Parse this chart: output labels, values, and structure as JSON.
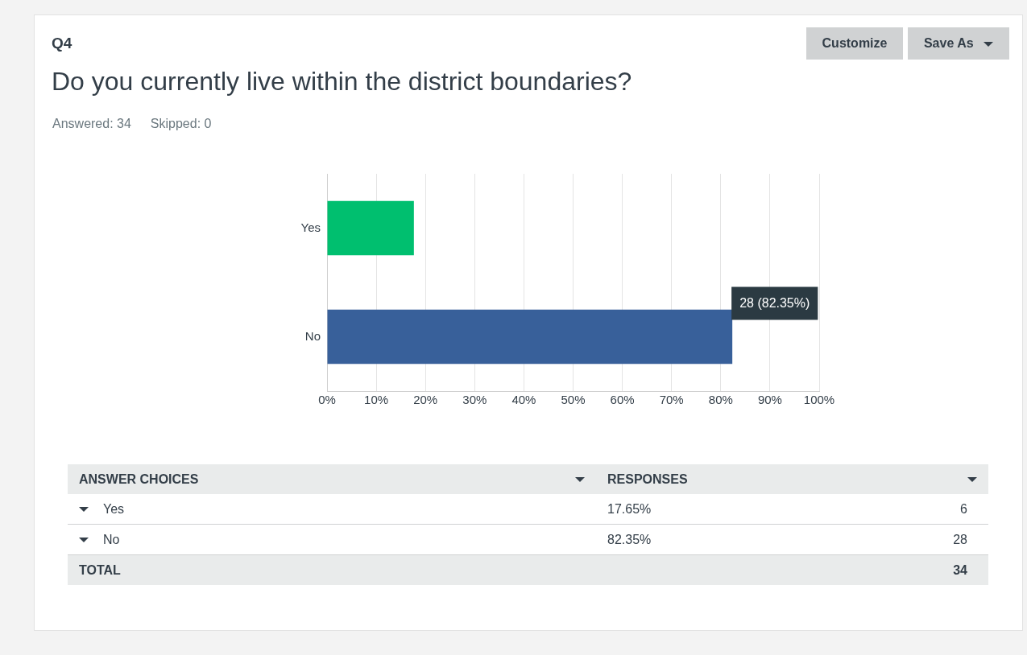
{
  "chart_data": {
    "type": "bar",
    "orientation": "horizontal",
    "subtitle": "Q4",
    "title": "Do you currently live within the district boundaries?",
    "categories": [
      "Yes",
      "No"
    ],
    "values": [
      17.65,
      82.35
    ],
    "colors": [
      "#00bf6f",
      "#38609a"
    ],
    "xlim": [
      0,
      100
    ],
    "xticks": [
      {
        "value": 0,
        "label": "0%"
      },
      {
        "value": 10,
        "label": "10%"
      },
      {
        "value": 20,
        "label": "20%"
      },
      {
        "value": 30,
        "label": "30%"
      },
      {
        "value": 40,
        "label": "40%"
      },
      {
        "value": 50,
        "label": "50%"
      },
      {
        "value": 60,
        "label": "60%"
      },
      {
        "value": 70,
        "label": "70%"
      },
      {
        "value": 80,
        "label": "80%"
      },
      {
        "value": 90,
        "label": "90%"
      },
      {
        "value": 100,
        "label": "100%"
      }
    ],
    "grid": "x",
    "legend": false,
    "annotations": [
      "Answered: 34",
      "Skipped: 0",
      "Customize",
      "Save As",
      "ANSWER CHOICES",
      "RESPONSES",
      "17.65%",
      "6",
      "82.35%",
      "28",
      "TOTAL",
      "34",
      {
        "text": "28 (82.35%)",
        "x": 82.35,
        "y": "No"
      }
    ]
  }
}
